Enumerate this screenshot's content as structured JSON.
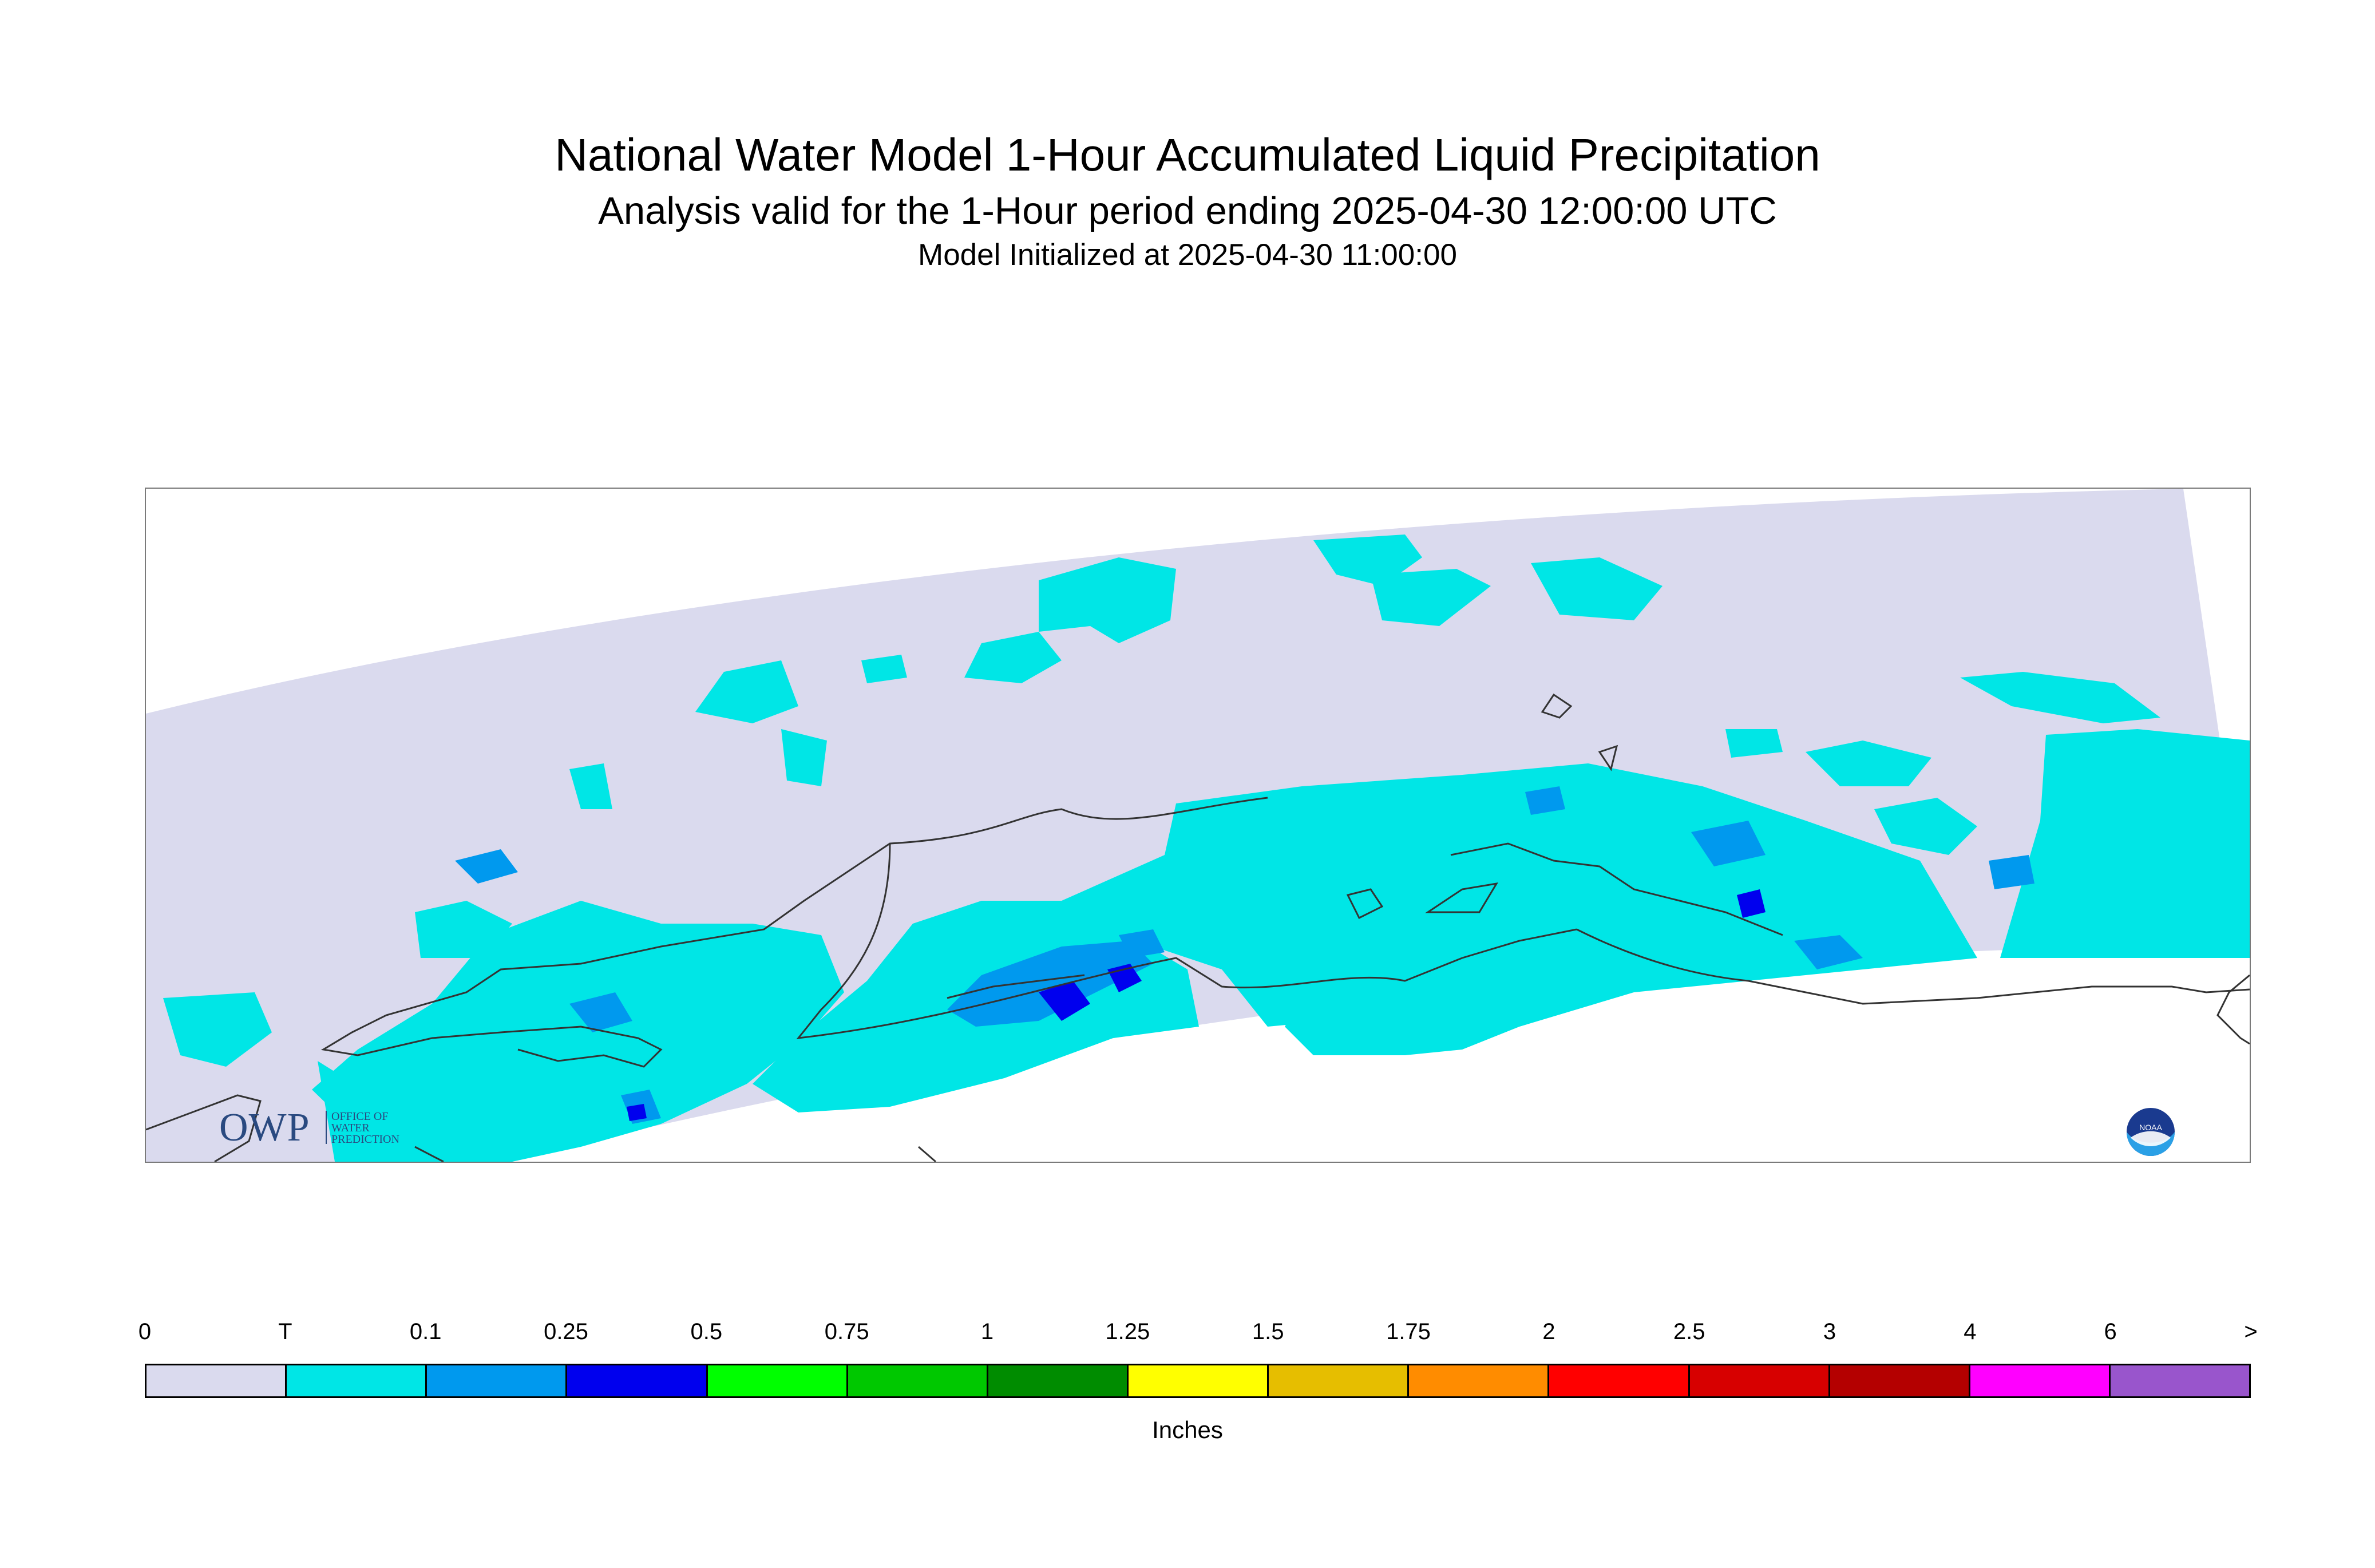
{
  "title": "National Water Model 1-Hour Accumulated Liquid Precipitation",
  "subtitle": "Analysis valid for the 1-Hour period ending 2025-04-30 12:00:00 UTC",
  "init_line": "Model Initialized at 2025-04-30 11:00:00",
  "logos": {
    "owp_letters": "OWP",
    "owp_lines": [
      "OFFICE OF",
      "WATER",
      "PREDICTION"
    ],
    "noaa_text": "NOAA"
  },
  "colors": {
    "domain_fill": "#dadaee",
    "coastline": "#333333",
    "trace": "#00e6e6",
    "light_blue": "#0099ee",
    "blue": "#0000ee"
  },
  "legend": {
    "units": "Inches",
    "ticks": [
      "0",
      "T",
      "0.1",
      "0.25",
      "0.5",
      "0.75",
      "1",
      "1.25",
      "1.5",
      "1.75",
      "2",
      "2.5",
      "3",
      "4",
      "6",
      ">"
    ],
    "colors": [
      "#dadaee",
      "#00e6e6",
      "#0099ee",
      "#0000ee",
      "#00ff00",
      "#00c800",
      "#008c00",
      "#ffff00",
      "#e6be00",
      "#ff8c00",
      "#ff0000",
      "#d70000",
      "#b40000",
      "#ff00ff",
      "#9955cc"
    ]
  }
}
